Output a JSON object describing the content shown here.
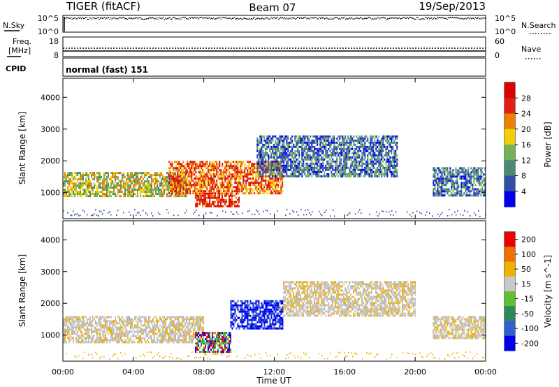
{
  "header": {
    "title": "TIGER (fitACF)",
    "beam": "Beam 07",
    "date": "19/Sep/2013"
  },
  "strip": {
    "nsky_label": "N.Sky",
    "nsearch_label": "N.Search",
    "noise_left_ticks": [
      "10^5",
      "10^0"
    ],
    "noise_right_ticks": [
      "10^5",
      "10^0"
    ],
    "freq_label": "Freq.",
    "freq_unit": "[MHz]",
    "freq_ticks": [
      "18",
      "8"
    ],
    "nave_label": "Nave",
    "nave_ticks": [
      "60",
      "0"
    ],
    "cpid_label": "CPID",
    "cpid_value": "normal (fast) 151"
  },
  "xaxis": {
    "label": "Time UT",
    "ticks": [
      "00:00",
      "04:00",
      "08:00",
      "12:00",
      "16:00",
      "20:00",
      "00:00"
    ]
  },
  "chart_data": [
    {
      "type": "heatmap",
      "panel": "power",
      "ylabel": "Slant Range [km]",
      "yticks": [
        "1000",
        "2000",
        "3000",
        "4000"
      ],
      "ylim": [
        180,
        4600
      ],
      "xlim_hours": [
        0,
        24
      ],
      "colorbar": {
        "label": "Power [dB]",
        "ticks": [
          "4",
          "8",
          "12",
          "16",
          "20",
          "24",
          "28"
        ],
        "colors": [
          "#0000ee",
          "#2f4fa8",
          "#4c8a72",
          "#74b25a",
          "#f0d000",
          "#f08000",
          "#e02010",
          "#dd0000"
        ]
      },
      "features": [
        {
          "t0": 0.0,
          "t1": 7.0,
          "r0": 900,
          "r1": 1650,
          "level": "green-yellow"
        },
        {
          "t0": 6.0,
          "t1": 12.5,
          "r0": 1000,
          "r1": 2000,
          "level": "orange-red"
        },
        {
          "t0": 7.5,
          "t1": 10.0,
          "r0": 600,
          "r1": 1000,
          "level": "red"
        },
        {
          "t0": 11.0,
          "t1": 19.0,
          "r0": 1500,
          "r1": 2800,
          "level": "blue-green"
        },
        {
          "t0": 21.0,
          "t1": 24.0,
          "r0": 900,
          "r1": 1800,
          "level": "blue-green"
        }
      ]
    },
    {
      "type": "heatmap",
      "panel": "velocity",
      "ylabel": "Slant Range [km]",
      "yticks": [
        "1000",
        "2000",
        "3000",
        "4000"
      ],
      "ylim": [
        180,
        4600
      ],
      "xlim_hours": [
        0,
        24
      ],
      "colorbar": {
        "label": "Velocity [m s^-1]",
        "ticks": [
          "200",
          "100",
          "50",
          "15",
          "-15",
          "-50",
          "-100",
          "-200"
        ],
        "colors": [
          "#0000ee",
          "#3060d0",
          "#2c8a5a",
          "#60c030",
          "#c8c8c8",
          "#f0b000",
          "#f07000",
          "#ee0000"
        ]
      },
      "features": [
        {
          "t0": 0.0,
          "t1": 8.0,
          "r0": 800,
          "r1": 1600,
          "level": "gray"
        },
        {
          "t0": 9.5,
          "t1": 12.5,
          "r0": 1200,
          "r1": 2100,
          "level": "blue"
        },
        {
          "t0": 7.5,
          "t1": 9.5,
          "r0": 500,
          "r1": 1100,
          "level": "green-blue"
        },
        {
          "t0": 12.5,
          "t1": 20.0,
          "r0": 1600,
          "r1": 2700,
          "level": "gray"
        },
        {
          "t0": 21.0,
          "t1": 24.0,
          "r0": 900,
          "r1": 1600,
          "level": "gray"
        }
      ]
    }
  ]
}
